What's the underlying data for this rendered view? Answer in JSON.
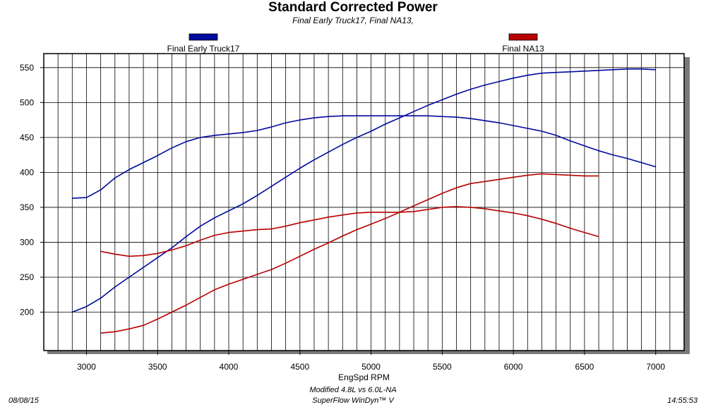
{
  "chart_data": {
    "type": "line",
    "title": "Standard Corrected Power",
    "subtitle": "Final Early Truck17, Final NA13,",
    "xlabel": "EngSpd RPM",
    "ylabel": "",
    "xlim": [
      2700,
      7200
    ],
    "ylim": [
      145,
      570
    ],
    "x_ticks": [
      3000,
      3500,
      4000,
      4500,
      5000,
      5500,
      6000,
      6500,
      7000
    ],
    "y_ticks": [
      200,
      250,
      300,
      350,
      400,
      450,
      500,
      550
    ],
    "grid": true,
    "legend_position": "top",
    "series": [
      {
        "name": "Final Early Truck17",
        "color": "#000a9e",
        "lines": [
          {
            "x": [
              2900,
              3000,
              3100,
              3200,
              3300,
              3400,
              3500,
              3600,
              3700,
              3800,
              3900,
              4000,
              4100,
              4200,
              4300,
              4400,
              4500,
              4600,
              4700,
              4800,
              4900,
              5000,
              5100,
              5200,
              5300,
              5400,
              5500,
              5600,
              5700,
              5800,
              5900,
              6000,
              6100,
              6200,
              6300,
              6400,
              6500,
              6600,
              6700,
              6800,
              6900,
              7000
            ],
            "y": [
              363,
              364,
              375,
              392,
              404,
              414,
              424,
              435,
              444,
              450,
              453,
              455,
              457,
              460,
              465,
              471,
              475,
              478,
              480,
              481,
              481,
              481,
              481,
              481,
              481,
              481,
              480,
              479,
              477,
              474,
              471,
              467,
              463,
              459,
              453,
              445,
              438,
              431,
              425,
              420,
              414,
              408
            ]
          },
          {
            "x": [
              2900,
              3000,
              3100,
              3200,
              3300,
              3400,
              3500,
              3600,
              3700,
              3800,
              3900,
              4000,
              4100,
              4200,
              4300,
              4400,
              4500,
              4600,
              4700,
              4800,
              4900,
              5000,
              5100,
              5200,
              5300,
              5400,
              5500,
              5600,
              5700,
              5800,
              5900,
              6000,
              6100,
              6200,
              6300,
              6400,
              6500,
              6600,
              6700,
              6800,
              6900,
              7000
            ],
            "y": [
              200,
              208,
              220,
              236,
              250,
              264,
              278,
              292,
              308,
              323,
              335,
              345,
              355,
              367,
              380,
              393,
              406,
              418,
              429,
              440,
              450,
              459,
              469,
              478,
              487,
              496,
              504,
              512,
              519,
              525,
              530,
              535,
              539,
              542,
              543,
              544,
              545,
              546,
              547,
              548,
              548,
              547
            ]
          }
        ]
      },
      {
        "name": "Final NA13",
        "color": "#b80000",
        "lines": [
          {
            "x": [
              3100,
              3200,
              3300,
              3400,
              3500,
              3600,
              3700,
              3800,
              3900,
              4000,
              4100,
              4200,
              4300,
              4400,
              4500,
              4600,
              4700,
              4800,
              4900,
              5000,
              5100,
              5200,
              5300,
              5400,
              5500,
              5600,
              5700,
              5800,
              5900,
              6000,
              6100,
              6200,
              6300,
              6400,
              6500,
              6600
            ],
            "y": [
              287,
              283,
              280,
              281,
              284,
              289,
              295,
              303,
              310,
              314,
              316,
              318,
              319,
              323,
              328,
              332,
              336,
              339,
              342,
              343,
              343,
              343,
              344,
              347,
              350,
              351,
              350,
              348,
              345,
              342,
              338,
              333,
              327,
              320,
              314,
              308
            ]
          },
          {
            "x": [
              3100,
              3200,
              3300,
              3400,
              3500,
              3600,
              3700,
              3800,
              3900,
              4000,
              4100,
              4200,
              4300,
              4400,
              4500,
              4600,
              4700,
              4800,
              4900,
              5000,
              5100,
              5200,
              5300,
              5400,
              5500,
              5600,
              5700,
              5800,
              5900,
              6000,
              6100,
              6200,
              6300,
              6400,
              6500,
              6600
            ],
            "y": [
              170,
              172,
              176,
              181,
              190,
              200,
              210,
              221,
              232,
              240,
              247,
              254,
              261,
              270,
              280,
              290,
              299,
              309,
              318,
              326,
              334,
              343,
              352,
              361,
              370,
              378,
              384,
              387,
              390,
              393,
              396,
              398,
              397,
              396,
              395,
              395
            ]
          }
        ]
      }
    ]
  },
  "footer": {
    "date": "08/08/15",
    "time": "14:55:53",
    "line1": "Modified 4.8L vs 6.0L-NA",
    "line2": "SuperFlow WinDyn™ V"
  }
}
